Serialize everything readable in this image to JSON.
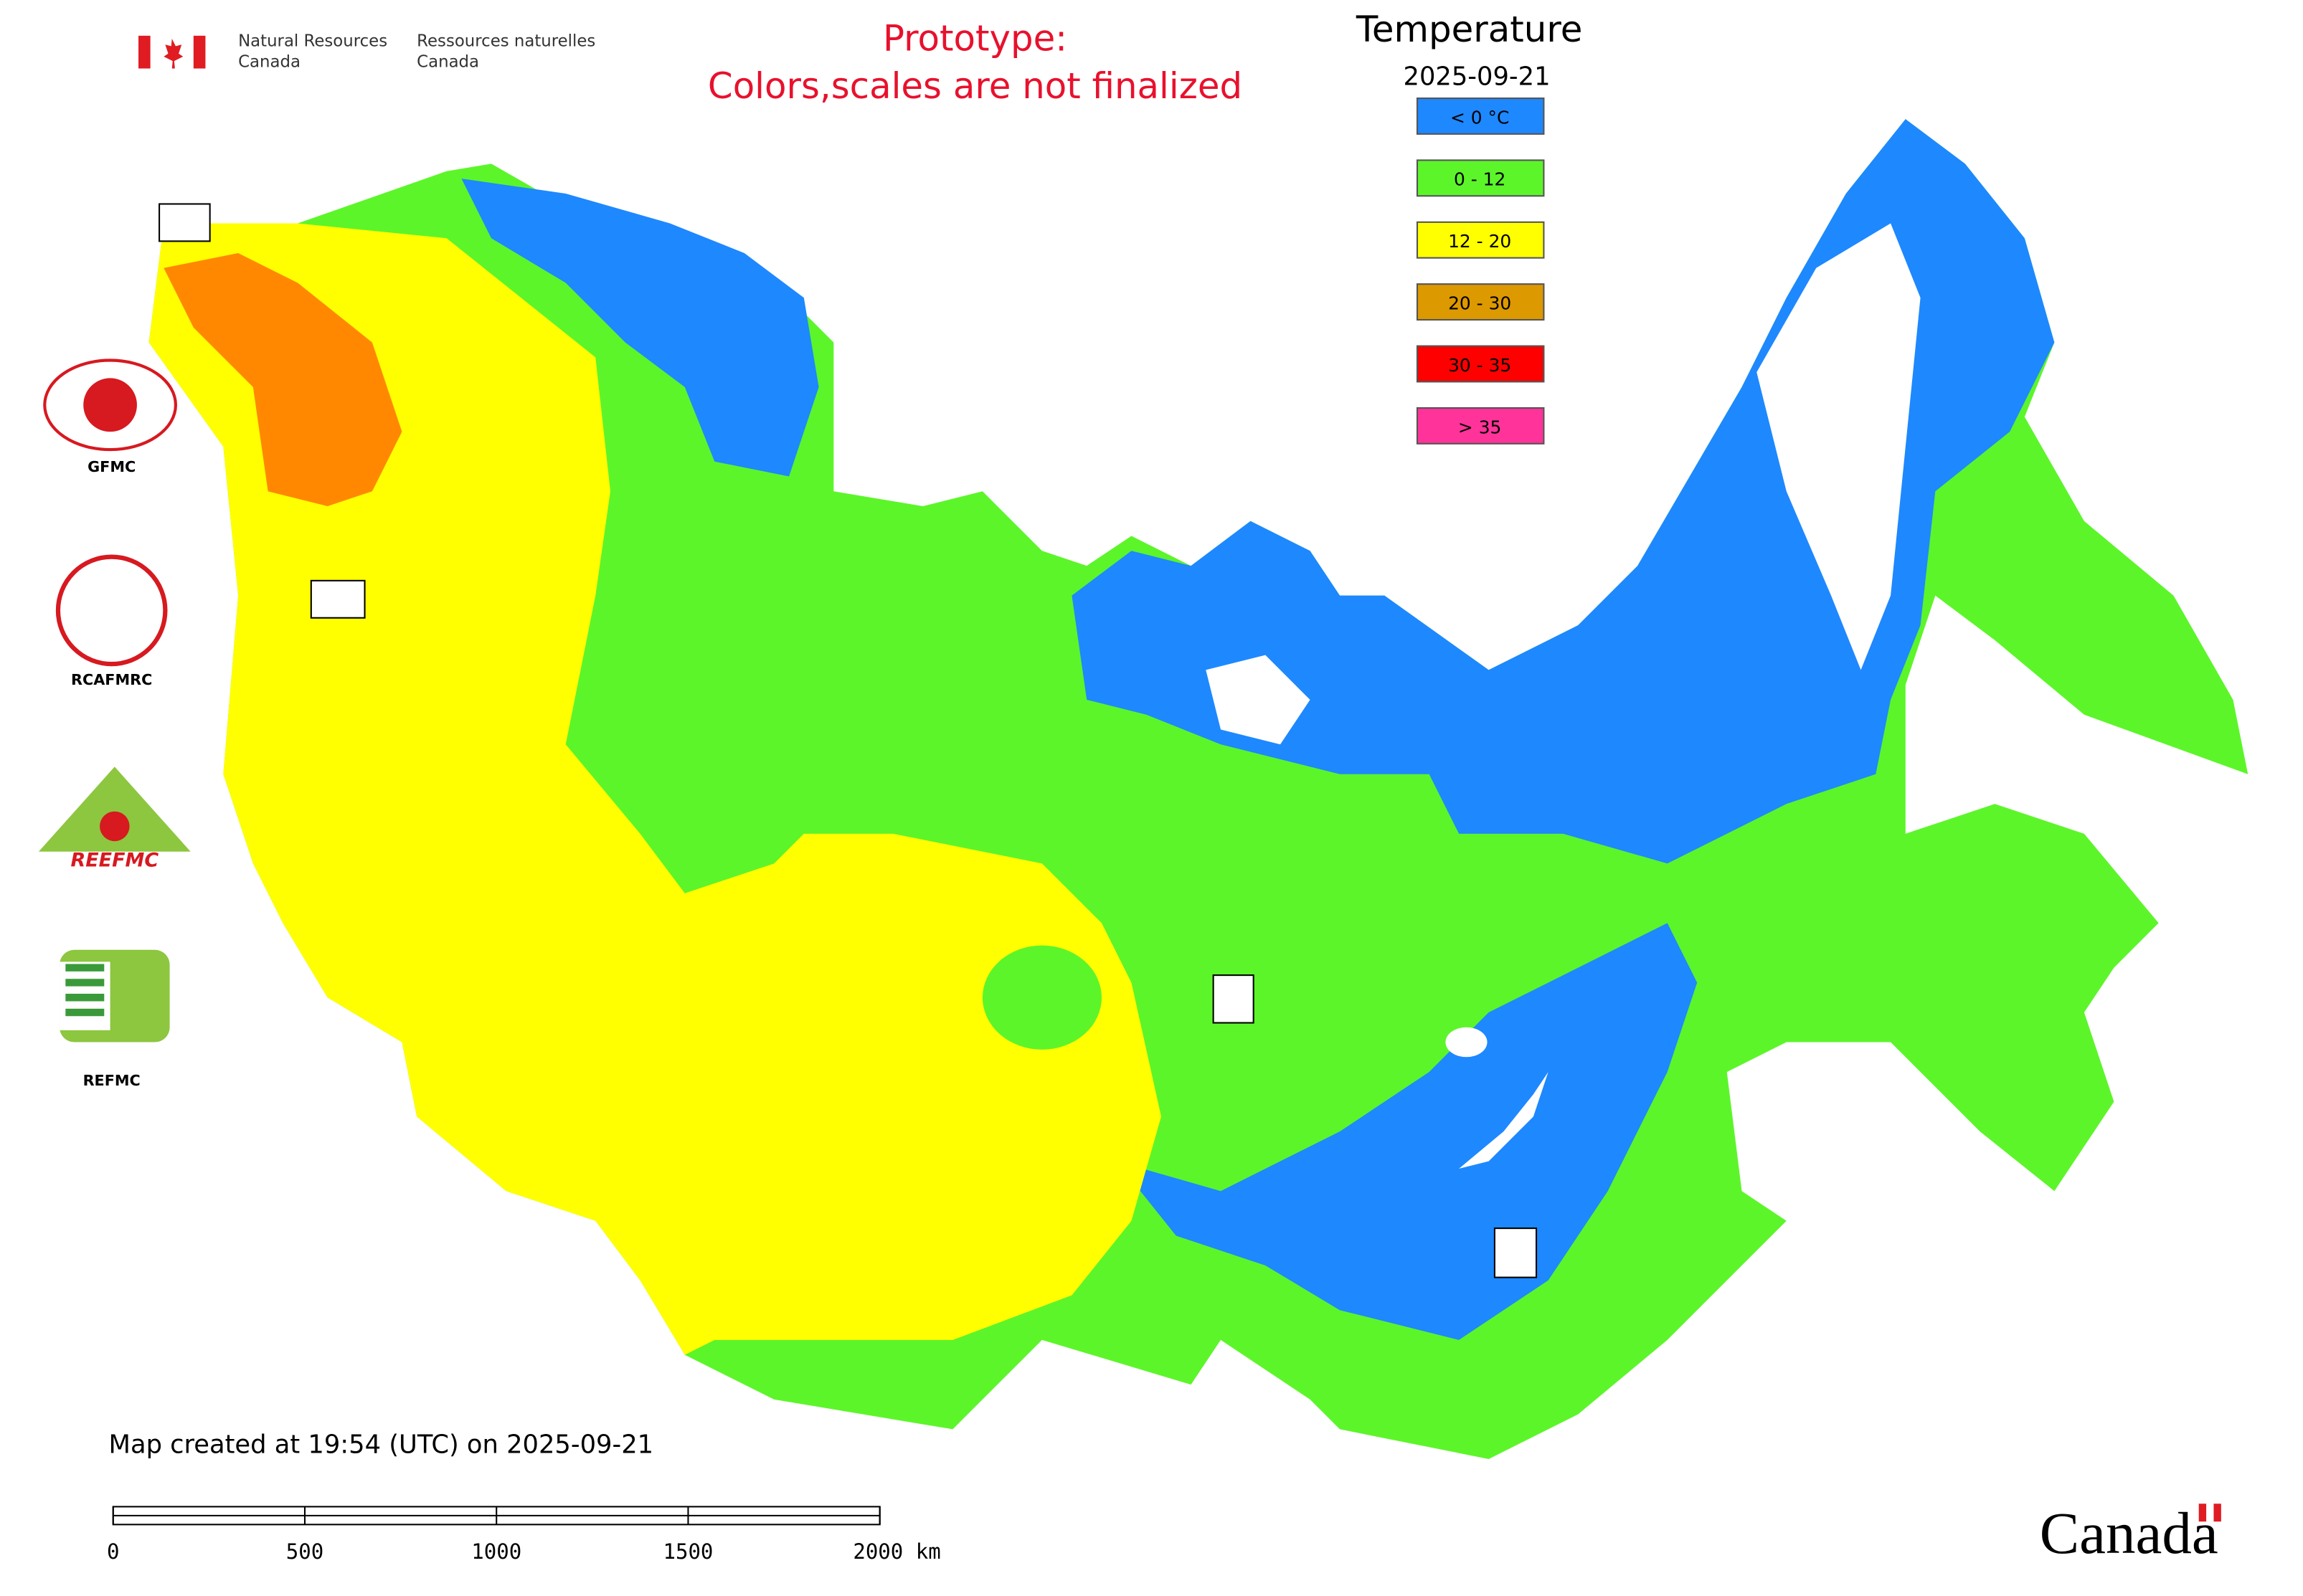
{
  "header": {
    "agency_en": [
      "Natural Resources",
      "Canada"
    ],
    "agency_fr": [
      "Ressources naturelles",
      "Canada"
    ]
  },
  "notice": [
    "Prototype:",
    "Colors,scales are not finalized"
  ],
  "legend": {
    "title": "Temperature",
    "date": "2025-09-21",
    "items": [
      {
        "label": "< 0 °C",
        "color": "#1e88ff"
      },
      {
        "label": "0 - 12",
        "color": "#5cf52a"
      },
      {
        "label": "12 - 20",
        "color": "#ffff00"
      },
      {
        "label": "20 - 30",
        "color": "#dd9900"
      },
      {
        "label": "30 - 35",
        "color": "#ff0000"
      },
      {
        "label": "> 35",
        "color": "#ff3399"
      }
    ]
  },
  "logos": [
    "GFMC",
    "RCAFMRC",
    "REEFMC",
    "REFMC"
  ],
  "footer": {
    "created": "Map created at 19:54 (UTC) on 2025-09-21",
    "scale": [
      "0",
      "500",
      "1000",
      "1500",
      "2000 km"
    ],
    "wordmark": "Canada"
  }
}
